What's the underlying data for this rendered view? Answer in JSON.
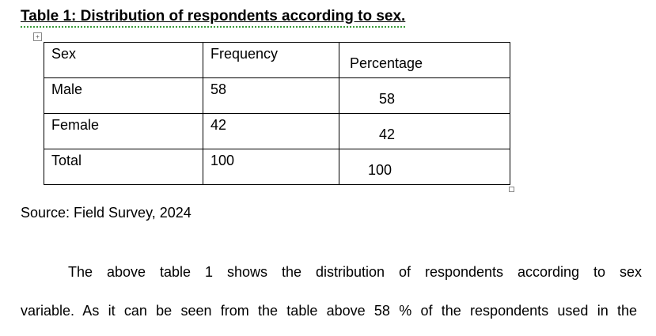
{
  "title": "Table 1: Distribution of respondents according to sex.",
  "table": {
    "header": [
      "Sex",
      "Frequency",
      "Percentage"
    ],
    "rows": [
      [
        "Male",
        "58",
        "58"
      ],
      [
        "Female",
        "42",
        "42"
      ],
      [
        "Total",
        "100",
        "100"
      ]
    ]
  },
  "source": "Source: Field Survey, 2024",
  "paragraph": [
    "The above table 1 shows the distribution of respondents according to sex",
    "variable. As it can be seen from the table above 58 % of the respondents used in the"
  ]
}
